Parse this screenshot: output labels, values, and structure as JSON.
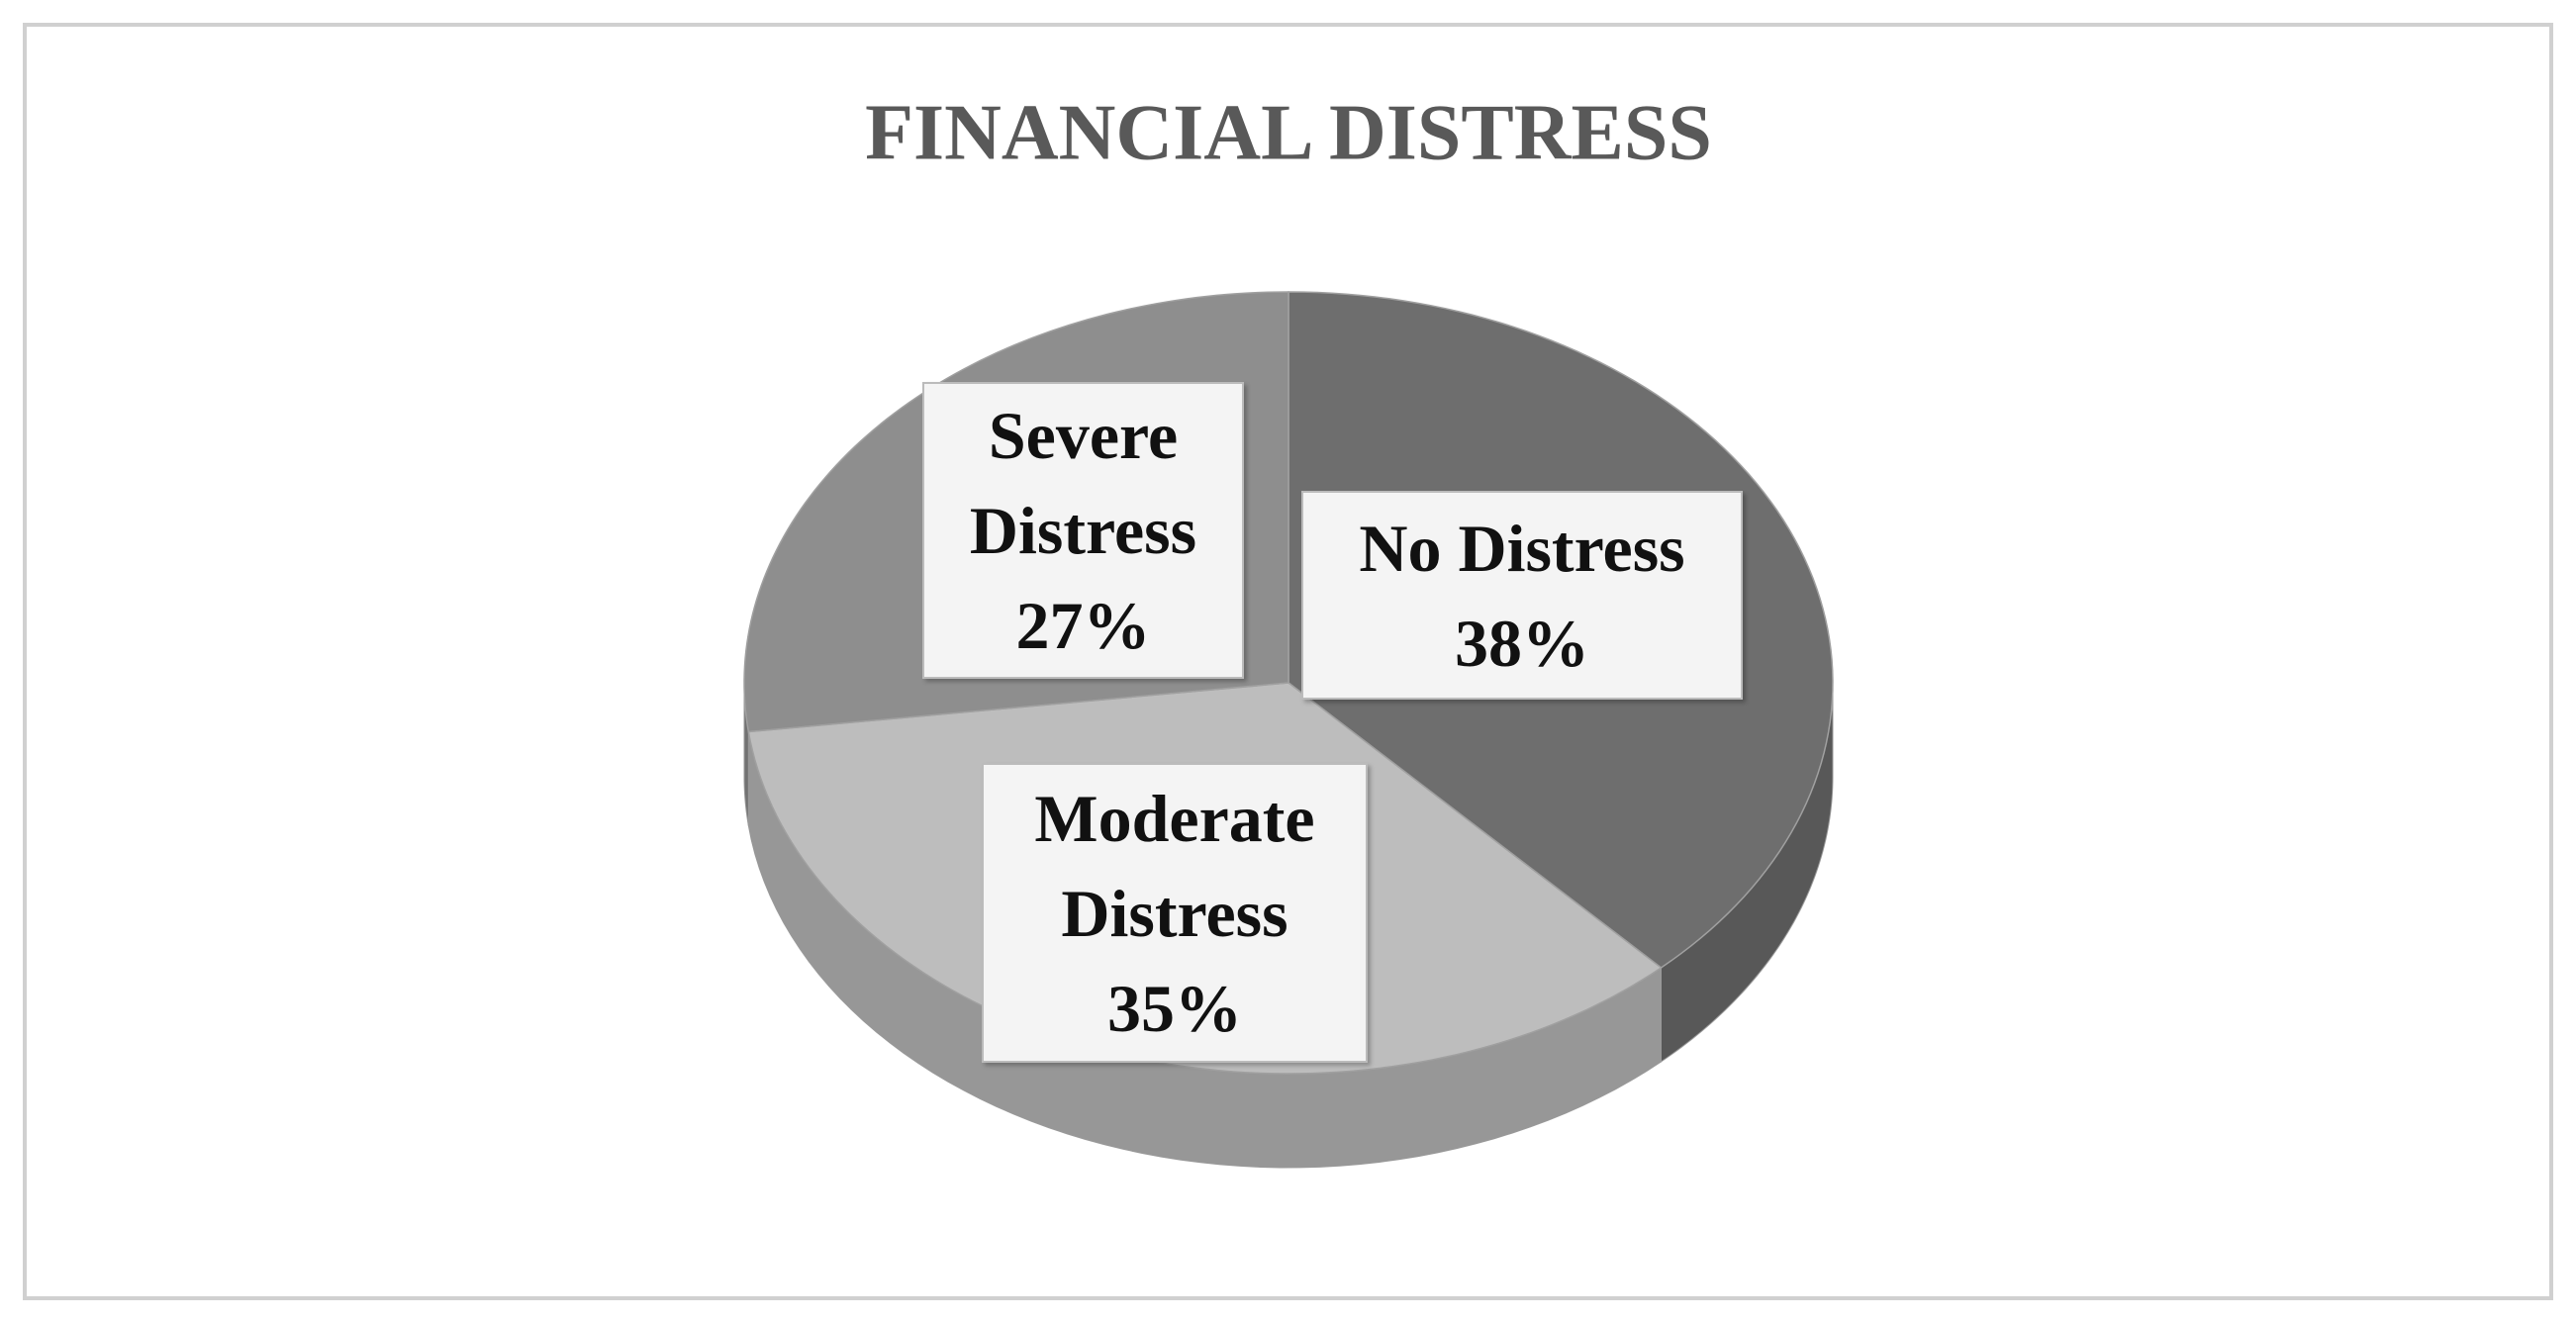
{
  "chart_data": {
    "type": "pie",
    "title": "FINANCIAL DISTRESS",
    "categories": [
      "No Distress",
      "Moderate Distress",
      "Severe Distress"
    ],
    "values": [
      38,
      35,
      27
    ],
    "value_labels": [
      "38%",
      "35%",
      "27%"
    ],
    "colors": [
      "#6e6e6e",
      "#bdbdbd",
      "#8e8e8e"
    ]
  }
}
